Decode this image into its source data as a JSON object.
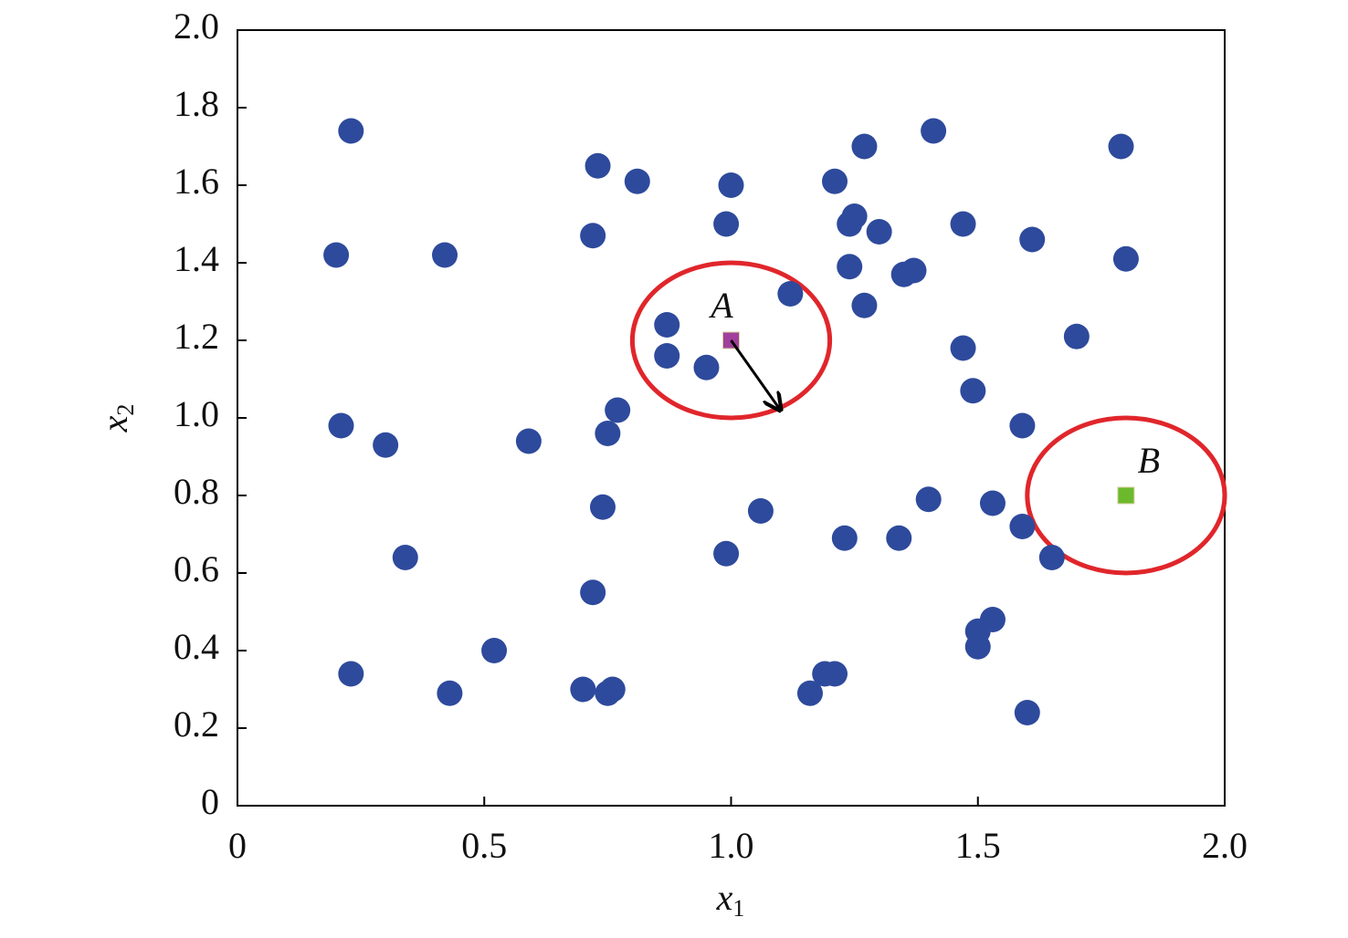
{
  "chart_data": {
    "type": "scatter",
    "xlabel": "x",
    "xlabel_sub": "1",
    "ylabel": "x",
    "ylabel_sub": "2",
    "xlim": [
      0,
      2
    ],
    "ylim": [
      0,
      2
    ],
    "xticks": [
      0,
      0.5,
      {
        "value": 1,
        "label": "1.0"
      },
      1.5,
      {
        "value": 2,
        "label": "2.0"
      }
    ],
    "yticks": [
      0,
      0.2,
      0.4,
      0.6,
      0.8,
      {
        "value": 1,
        "label": "1.0"
      },
      1.2,
      1.4,
      1.6,
      1.8,
      {
        "value": 2,
        "label": "2.0"
      }
    ],
    "series": [
      {
        "color": "#2e4a9c",
        "marker": "circle",
        "x": [
          0.23,
          0.2,
          0.42,
          0.21,
          0.3,
          0.34,
          0.23,
          0.43,
          0.52,
          0.59,
          0.73,
          0.81,
          0.72,
          0.77,
          0.75,
          0.74,
          0.72,
          0.7,
          0.75,
          0.76,
          1.0,
          0.99,
          0.87,
          0.87,
          0.95,
          1.12,
          1.06,
          0.99,
          1.21,
          1.27,
          1.25,
          1.24,
          1.3,
          1.24,
          1.27,
          1.35,
          1.37,
          1.41,
          1.47,
          1.61,
          1.79,
          1.8,
          1.7,
          1.47,
          1.49,
          1.59,
          1.4,
          1.53,
          1.59,
          1.65,
          1.23,
          1.34,
          1.16,
          1.19,
          1.21,
          1.5,
          1.53,
          1.5,
          1.6
        ],
        "values": [
          1.74,
          1.42,
          1.42,
          0.98,
          0.93,
          0.64,
          0.34,
          0.29,
          0.4,
          0.94,
          1.65,
          1.61,
          1.47,
          1.02,
          0.96,
          0.77,
          0.55,
          0.3,
          0.29,
          0.3,
          1.6,
          1.5,
          1.24,
          1.16,
          1.13,
          1.32,
          0.76,
          0.65,
          1.61,
          1.7,
          1.52,
          1.5,
          1.48,
          1.39,
          1.29,
          1.37,
          1.38,
          1.74,
          1.5,
          1.46,
          1.7,
          1.41,
          1.21,
          1.18,
          1.07,
          0.98,
          0.79,
          0.78,
          0.72,
          0.64,
          0.69,
          0.69,
          0.29,
          0.34,
          0.34,
          0.45,
          0.48,
          0.41,
          0.24
        ]
      },
      {
        "color": "#a0409c",
        "marker": "square",
        "label": "A",
        "x": [
          1.0
        ],
        "values": [
          1.2
        ]
      },
      {
        "color": "#6cba2c",
        "marker": "square",
        "label": "B",
        "x": [
          1.8
        ],
        "values": [
          0.8
        ]
      }
    ],
    "regions": [
      {
        "color": "#e0262b",
        "x": 1.0,
        "y": 1.2,
        "radius": 0.2
      },
      {
        "color": "#e0262b",
        "x": 1.8,
        "y": 0.8,
        "radius": 0.2
      }
    ],
    "arrow": {
      "x": [
        1.0,
        1.1
      ],
      "y": [
        1.2,
        1.02
      ]
    }
  }
}
